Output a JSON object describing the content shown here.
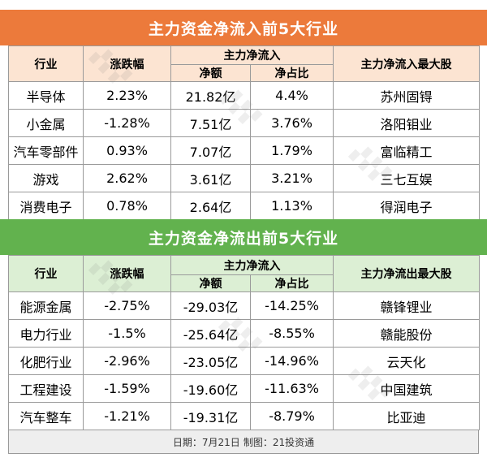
{
  "inflow": {
    "title": "主力资金净流入前5大行业",
    "headers": {
      "industry": "行业",
      "change": "涨跌幅",
      "group": "主力净流入",
      "net_amount": "净额",
      "net_ratio": "净占比",
      "top_stock": "主力净流入最大股"
    },
    "rows": [
      {
        "industry": "半导体",
        "change": "2.23%",
        "net_amount": "21.82亿",
        "net_ratio": "4.4%",
        "top_stock": "苏州固锝"
      },
      {
        "industry": "小金属",
        "change": "-1.28%",
        "net_amount": "7.51亿",
        "net_ratio": "3.76%",
        "top_stock": "洛阳钼业"
      },
      {
        "industry": "汽车零部件",
        "change": "0.93%",
        "net_amount": "7.07亿",
        "net_ratio": "1.79%",
        "top_stock": "富临精工"
      },
      {
        "industry": "游戏",
        "change": "2.62%",
        "net_amount": "3.61亿",
        "net_ratio": "3.21%",
        "top_stock": "三七互娱"
      },
      {
        "industry": "消费电子",
        "change": "0.78%",
        "net_amount": "2.64亿",
        "net_ratio": "1.13%",
        "top_stock": "得润电子"
      }
    ]
  },
  "outflow": {
    "title": "主力资金净流出前5大行业",
    "headers": {
      "industry": "行业",
      "change": "涨跌幅",
      "group": "主力净流入",
      "net_amount": "净额",
      "net_ratio": "净占比",
      "top_stock": "主力净流出最大股"
    },
    "rows": [
      {
        "industry": "能源金属",
        "change": "-2.75%",
        "net_amount": "-29.03亿",
        "net_ratio": "-14.25%",
        "top_stock": "赣锋锂业"
      },
      {
        "industry": "电力行业",
        "change": "-1.5%",
        "net_amount": "-25.64亿",
        "net_ratio": "-8.55%",
        "top_stock": "赣能股份"
      },
      {
        "industry": "化肥行业",
        "change": "-2.96%",
        "net_amount": "-23.05亿",
        "net_ratio": "-14.96%",
        "top_stock": "云天化"
      },
      {
        "industry": "工程建设",
        "change": "-1.59%",
        "net_amount": "-19.60亿",
        "net_ratio": "-11.63%",
        "top_stock": "中国建筑"
      },
      {
        "industry": "汽车整车",
        "change": "-1.21%",
        "net_amount": "-19.31亿",
        "net_ratio": "-8.79%",
        "top_stock": "比亚迪"
      }
    ]
  },
  "footer": {
    "date": "日期：7月21日",
    "credit": "制图：21投资通"
  },
  "colors": {
    "inflow_banner": "#ec7a3b",
    "inflow_header_bg": "#fce4d2",
    "outflow_banner": "#62b24e",
    "outflow_header_bg": "#dcefd4"
  }
}
